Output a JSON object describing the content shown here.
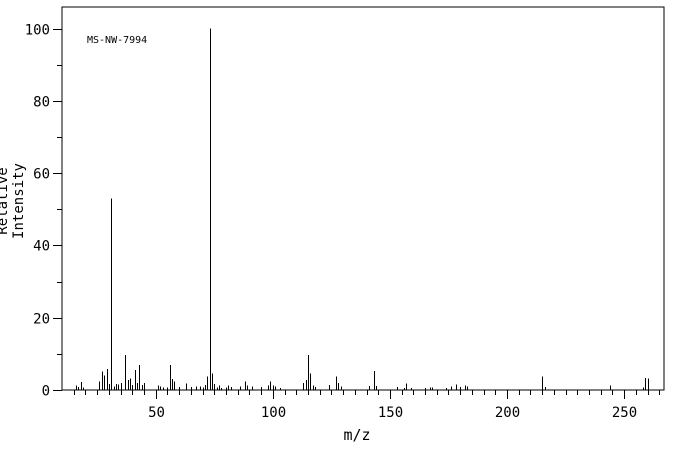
{
  "chart_data": {
    "type": "bar",
    "subtype": "mass-spectrum",
    "title_annotation": "MS-NW-7994",
    "xlabel": "m/z",
    "ylabel": "Relative Intensity",
    "x_range": [
      10,
      267
    ],
    "y_range": [
      0,
      106
    ],
    "x_major_ticks": [
      50,
      100,
      150,
      200,
      250
    ],
    "x_minor_step": 5,
    "y_major_ticks": [
      0,
      20,
      40,
      60,
      80,
      100
    ],
    "y_minor_step": 10,
    "grid": false,
    "legend": false,
    "colors": {
      "foreground": "#000000",
      "background": "#ffffff"
    },
    "base_peak": {
      "mz": 73,
      "intensity": 100
    },
    "peaks": [
      [
        16,
        1.2
      ],
      [
        17,
        0.8
      ],
      [
        18,
        2.2
      ],
      [
        19,
        0.7
      ],
      [
        26,
        2.3
      ],
      [
        27,
        5.1
      ],
      [
        28,
        4.0
      ],
      [
        29,
        5.8
      ],
      [
        30,
        1.7
      ],
      [
        31,
        53
      ],
      [
        32,
        0.9
      ],
      [
        33,
        1.6
      ],
      [
        34,
        1.5
      ],
      [
        35,
        2.0
      ],
      [
        37,
        9.7
      ],
      [
        38,
        2.8
      ],
      [
        39,
        3.2
      ],
      [
        40,
        1.4
      ],
      [
        41,
        5.5
      ],
      [
        42,
        1.9
      ],
      [
        43,
        6.9
      ],
      [
        44,
        1.4
      ],
      [
        45,
        2.0
      ],
      [
        51,
        1.2
      ],
      [
        52,
        0.9
      ],
      [
        53,
        0.7
      ],
      [
        55,
        0.7
      ],
      [
        56,
        6.9
      ],
      [
        57,
        3.0
      ],
      [
        58,
        2.4
      ],
      [
        60,
        0.8
      ],
      [
        63,
        1.8
      ],
      [
        65,
        0.8
      ],
      [
        67,
        0.9
      ],
      [
        69,
        1.0
      ],
      [
        70,
        0.7
      ],
      [
        71,
        1.4
      ],
      [
        72,
        3.7
      ],
      [
        73,
        100
      ],
      [
        74,
        4.6
      ],
      [
        75,
        1.6
      ],
      [
        76,
        0.7
      ],
      [
        77,
        1.2
      ],
      [
        78,
        0.6
      ],
      [
        80,
        0.7
      ],
      [
        81,
        1.2
      ],
      [
        82,
        0.8
      ],
      [
        86,
        1.0
      ],
      [
        88,
        2.3
      ],
      [
        89,
        1.2
      ],
      [
        91,
        0.9
      ],
      [
        95,
        0.8
      ],
      [
        98,
        1.2
      ],
      [
        99,
        2.3
      ],
      [
        100,
        1.2
      ],
      [
        101,
        0.9
      ],
      [
        103,
        0.6
      ],
      [
        113,
        1.9
      ],
      [
        114,
        2.8
      ],
      [
        115,
        9.7
      ],
      [
        116,
        4.6
      ],
      [
        117,
        1.2
      ],
      [
        118,
        0.8
      ],
      [
        124,
        1.4
      ],
      [
        127,
        3.7
      ],
      [
        128,
        1.9
      ],
      [
        129,
        1.0
      ],
      [
        141,
        1.1
      ],
      [
        143,
        5.2
      ],
      [
        144,
        1.1
      ],
      [
        153,
        0.8
      ],
      [
        156,
        0.6
      ],
      [
        157,
        1.8
      ],
      [
        159,
        0.6
      ],
      [
        165,
        0.6
      ],
      [
        167,
        0.7
      ],
      [
        168,
        0.7
      ],
      [
        174,
        0.6
      ],
      [
        176,
        0.9
      ],
      [
        178,
        1.5
      ],
      [
        180,
        0.8
      ],
      [
        182,
        1.2
      ],
      [
        183,
        0.9
      ],
      [
        215,
        3.8
      ],
      [
        216,
        0.8
      ],
      [
        244,
        1.3
      ],
      [
        258,
        0.7
      ],
      [
        259,
        3.3
      ],
      [
        260,
        3.2
      ]
    ]
  }
}
